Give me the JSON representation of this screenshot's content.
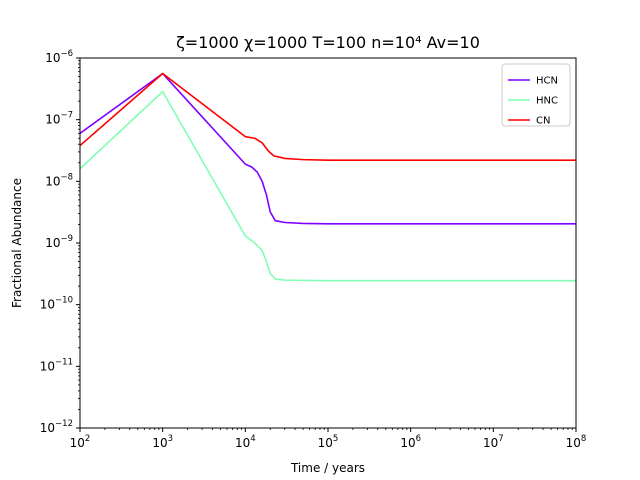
{
  "chart_data": {
    "type": "line",
    "title": "ζ=1000 χ=1000 T=100 n=10⁴  Av=10",
    "xlabel": "Time / years",
    "ylabel": "Fractional Abundance",
    "xscale": "log",
    "yscale": "log",
    "xlim": [
      100,
      100000000
    ],
    "ylim": [
      1e-12,
      1e-06
    ],
    "x_ticks": [
      {
        "value": 100,
        "base": "10",
        "exp": "2"
      },
      {
        "value": 1000,
        "base": "10",
        "exp": "3"
      },
      {
        "value": 10000,
        "base": "10",
        "exp": "4"
      },
      {
        "value": 100000,
        "base": "10",
        "exp": "5"
      },
      {
        "value": 1000000,
        "base": "10",
        "exp": "6"
      },
      {
        "value": 10000000,
        "base": "10",
        "exp": "7"
      },
      {
        "value": 100000000,
        "base": "10",
        "exp": "8"
      }
    ],
    "y_ticks": [
      {
        "value": 1e-12,
        "base": "10",
        "exp": "−12"
      },
      {
        "value": 1e-11,
        "base": "10",
        "exp": "−11"
      },
      {
        "value": 1e-10,
        "base": "10",
        "exp": "−10"
      },
      {
        "value": 1e-09,
        "base": "10",
        "exp": "−9"
      },
      {
        "value": 1e-08,
        "base": "10",
        "exp": "−8"
      },
      {
        "value": 1e-07,
        "base": "10",
        "exp": "−7"
      },
      {
        "value": 1e-06,
        "base": "10",
        "exp": "−6"
      }
    ],
    "grid": false,
    "legend_position": "top-right",
    "series": [
      {
        "name": "HCN",
        "color": "#8000ff",
        "points": [
          [
            100,
            6e-08
          ],
          [
            1000,
            5.6e-07
          ],
          [
            10000,
            1.9e-08
          ],
          [
            12000,
            1.7e-08
          ],
          [
            14000,
            1.4e-08
          ],
          [
            16000,
            1e-08
          ],
          [
            18000,
            6e-09
          ],
          [
            20000,
            3.2e-09
          ],
          [
            23000,
            2.3e-09
          ],
          [
            30000,
            2.15e-09
          ],
          [
            50000,
            2.08e-09
          ],
          [
            100000,
            2.05e-09
          ],
          [
            1000000,
            2.05e-09
          ],
          [
            100000000,
            2.05e-09
          ]
        ]
      },
      {
        "name": "HNC",
        "color": "#80ffb4",
        "points": [
          [
            100,
            1.6e-08
          ],
          [
            1000,
            2.85e-07
          ],
          [
            10000,
            1.3e-09
          ],
          [
            13000,
            1e-09
          ],
          [
            16000,
            7.5e-10
          ],
          [
            18000,
            5e-10
          ],
          [
            20000,
            3.2e-10
          ],
          [
            23000,
            2.6e-10
          ],
          [
            30000,
            2.5e-10
          ],
          [
            100000,
            2.45e-10
          ],
          [
            100000000,
            2.45e-10
          ]
        ]
      },
      {
        "name": "CN",
        "color": "#ff0000",
        "points": [
          [
            100,
            3.8e-08
          ],
          [
            1000,
            5.6e-07
          ],
          [
            10000,
            5.3e-08
          ],
          [
            13000,
            5e-08
          ],
          [
            16000,
            4.2e-08
          ],
          [
            19000,
            3.1e-08
          ],
          [
            22000,
            2.6e-08
          ],
          [
            30000,
            2.35e-08
          ],
          [
            50000,
            2.25e-08
          ],
          [
            100000,
            2.2e-08
          ],
          [
            100000000,
            2.2e-08
          ]
        ]
      }
    ]
  }
}
